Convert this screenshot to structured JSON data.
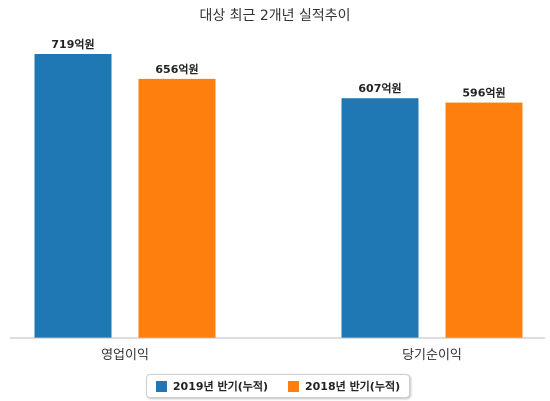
{
  "chart_data": {
    "type": "bar",
    "title": "대상 최근 2개년 실적추이",
    "categories": [
      "영업이익",
      "당기순이익"
    ],
    "series": [
      {
        "name": "2019년 반기(누적)",
        "values": [
          719,
          607
        ],
        "labels": [
          "719억원",
          "607억원"
        ],
        "color": "#1f77b4"
      },
      {
        "name": "2018년 반기(누적)",
        "values": [
          656,
          596
        ],
        "labels": [
          "656억원",
          "596억원"
        ],
        "color": "#ff7f0e"
      }
    ],
    "unit": "억원",
    "ylim": [
      0,
      800
    ],
    "grid": false,
    "legend_position": "bottom"
  }
}
